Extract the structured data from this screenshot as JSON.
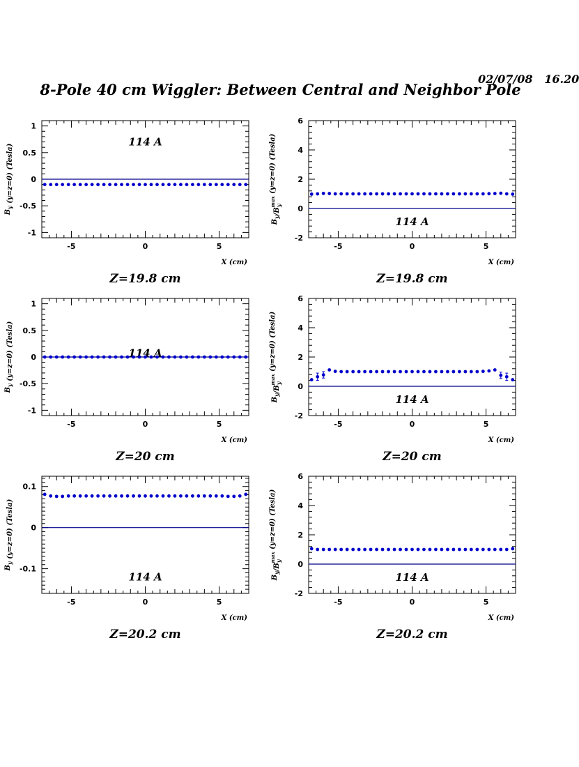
{
  "header": {
    "date": "02/07/08   16.20",
    "title": "8-Pole 40 cm Wiggler: Between Central and Neighbor Pole"
  },
  "colors": {
    "data": "#0000cc",
    "axis": "#000000",
    "zero_line": "#00008b"
  },
  "chart_data": [
    {
      "type": "scatter",
      "row": 1,
      "col": 1,
      "xlabel": "X (cm)",
      "ylabel": "B_y (y=z=0) (Tesla)",
      "xlim": [
        -7,
        7
      ],
      "ylim": [
        -1.1,
        1.1
      ],
      "xticks": [
        "-5",
        "0",
        "5"
      ],
      "yticks": [
        "1",
        "0.5",
        "0",
        "-0.5",
        "-1"
      ],
      "annotation": "114 A",
      "caption": "Z=19.8 cm",
      "hline": 0,
      "series": [
        {
          "x_start": -6.8,
          "x_step": 0.4,
          "count": 35,
          "values": [
            -0.1
          ]
        }
      ]
    },
    {
      "type": "scatter",
      "row": 1,
      "col": 2,
      "xlabel": "X (cm)",
      "ylabel": "B_y/B_y^max (y=z=0) (Tesla)",
      "xlim": [
        -7,
        7
      ],
      "ylim": [
        -2,
        6
      ],
      "xticks": [
        "-5",
        "0",
        "5"
      ],
      "yticks": [
        "6",
        "4",
        "2",
        "0",
        "-2"
      ],
      "annotation": "114 A",
      "caption": "Z=19.8 cm",
      "hline": 0,
      "series": [
        {
          "x_start": -6.8,
          "x_step": 0.4,
          "count": 35,
          "values": [
            0.98,
            1.0,
            1.03,
            1.02,
            1.0,
            1.0,
            1.0,
            1.0,
            1.0,
            1.0,
            1.0,
            1.0,
            1.0,
            1.0,
            1.0,
            1.0,
            1.0,
            1.0,
            1.0,
            1.0,
            1.0,
            1.0,
            1.0,
            1.0,
            1.0,
            1.0,
            1.0,
            1.0,
            1.0,
            1.0,
            1.01,
            1.02,
            1.04,
            1.0,
            0.98
          ]
        }
      ]
    },
    {
      "type": "scatter",
      "row": 2,
      "col": 1,
      "xlabel": "X (cm)",
      "ylabel": "B_y (y=z=0) (Tesla)",
      "xlim": [
        -7,
        7
      ],
      "ylim": [
        -1.1,
        1.1
      ],
      "xticks": [
        "-5",
        "0",
        "5"
      ],
      "yticks": [
        "1",
        "0.5",
        "0",
        "-0.5",
        "-1"
      ],
      "annotation": "114 A",
      "caption": "Z=20 cm",
      "hline": 0,
      "series": [
        {
          "x_start": -6.8,
          "x_step": 0.4,
          "count": 35,
          "values": [
            0.0
          ]
        }
      ]
    },
    {
      "type": "scatter",
      "row": 2,
      "col": 2,
      "xlabel": "X (cm)",
      "ylabel": "B_y/B_y^max (y=z=0) (Tesla)",
      "xlim": [
        -7,
        7
      ],
      "ylim": [
        -2,
        6
      ],
      "xticks": [
        "-5",
        "0",
        "5"
      ],
      "yticks": [
        "6",
        "4",
        "2",
        "0",
        "-2"
      ],
      "annotation": "114 A",
      "caption": "Z=20 cm",
      "hline": 0,
      "series": [
        {
          "x_start": -6.8,
          "x_step": 0.4,
          "count": 35,
          "values": [
            0.45,
            0.65,
            0.78,
            1.12,
            1.02,
            1.0,
            1.0,
            1.0,
            1.0,
            1.0,
            1.0,
            1.0,
            1.0,
            1.0,
            1.0,
            1.0,
            1.0,
            1.0,
            1.0,
            1.0,
            1.0,
            1.0,
            1.0,
            1.0,
            1.0,
            1.0,
            1.0,
            1.0,
            1.0,
            1.02,
            1.05,
            1.12,
            0.75,
            0.65,
            0.45
          ],
          "errors": [
            0,
            0.25,
            0.22,
            0,
            0,
            0,
            0,
            0,
            0,
            0,
            0,
            0,
            0,
            0,
            0,
            0,
            0,
            0,
            0,
            0,
            0,
            0,
            0,
            0,
            0,
            0,
            0,
            0,
            0,
            0,
            0,
            0,
            0.22,
            0.25,
            0
          ]
        }
      ]
    },
    {
      "type": "scatter",
      "row": 3,
      "col": 1,
      "xlabel": "X (cm)",
      "ylabel": "B_y (y=z=0) (Tesla)",
      "xlim": [
        -7,
        7
      ],
      "ylim": [
        -0.16,
        0.125
      ],
      "xticks": [
        "-5",
        "0",
        "5"
      ],
      "yticks": [
        "0.1",
        "0",
        "-0.1"
      ],
      "annotation": "114 A",
      "caption": "Z=20.2 cm",
      "hline": 0,
      "series": [
        {
          "x_start": -6.8,
          "x_step": 0.4,
          "count": 35,
          "values": [
            0.081,
            0.077,
            0.076,
            0.076,
            0.077,
            0.077,
            0.077,
            0.077,
            0.077,
            0.077,
            0.077,
            0.077,
            0.077,
            0.077,
            0.077,
            0.077,
            0.077,
            0.077,
            0.077,
            0.077,
            0.077,
            0.077,
            0.077,
            0.077,
            0.077,
            0.077,
            0.077,
            0.077,
            0.077,
            0.077,
            0.077,
            0.076,
            0.076,
            0.077,
            0.081
          ]
        }
      ]
    },
    {
      "type": "scatter",
      "row": 3,
      "col": 2,
      "xlabel": "X (cm)",
      "ylabel": "B_y/B_y^max (y=z=0) (Tesla)",
      "xlim": [
        -7,
        7
      ],
      "ylim": [
        -2,
        6
      ],
      "xticks": [
        "-5",
        "0",
        "5"
      ],
      "yticks": [
        "6",
        "4",
        "2",
        "0",
        "-2"
      ],
      "annotation": "114 A",
      "caption": "Z=20.2 cm",
      "hline": 0,
      "series": [
        {
          "x_start": -6.8,
          "x_step": 0.4,
          "count": 35,
          "values": [
            1.05,
            1.0,
            1.0,
            1.0,
            1.0,
            1.0,
            1.0,
            1.0,
            1.0,
            1.0,
            1.0,
            1.0,
            1.0,
            1.0,
            1.0,
            1.0,
            1.0,
            1.0,
            1.0,
            1.0,
            1.0,
            1.0,
            1.0,
            1.0,
            1.0,
            1.0,
            1.0,
            1.0,
            1.0,
            1.0,
            1.0,
            1.0,
            1.0,
            1.0,
            1.05
          ]
        }
      ]
    }
  ]
}
